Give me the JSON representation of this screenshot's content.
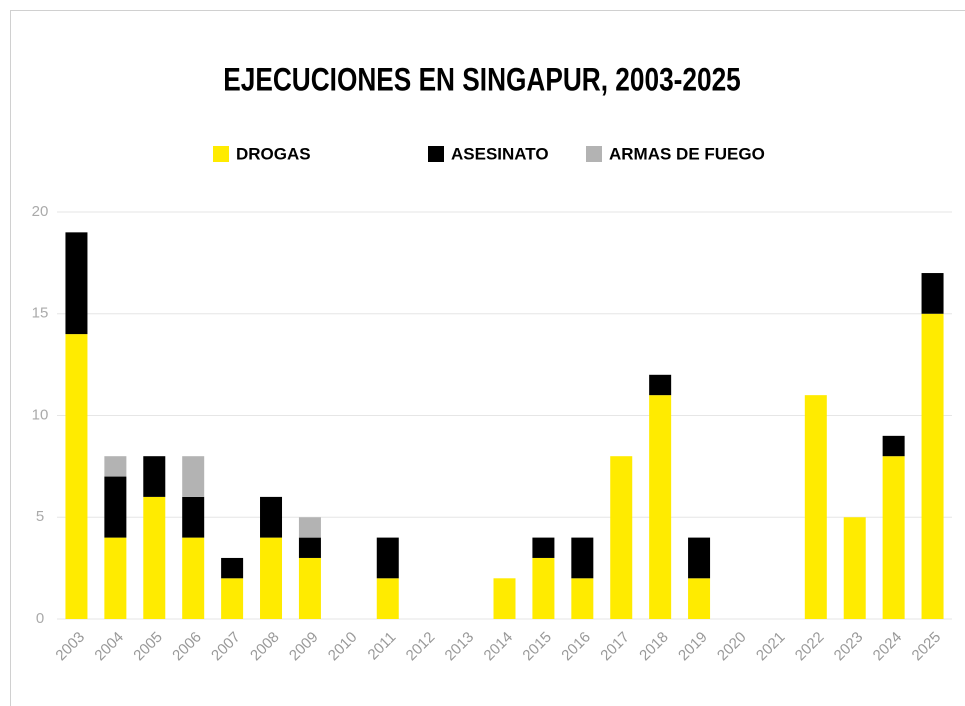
{
  "chart_data": {
    "type": "stacked_bar",
    "title": "EJECUCIONES EN SINGAPUR, 2003-2025",
    "categories": [
      "2003",
      "2004",
      "2005",
      "2006",
      "2007",
      "2008",
      "2009",
      "2010",
      "2011",
      "2012",
      "2013",
      "2014",
      "2015",
      "2016",
      "2017",
      "2018",
      "2019",
      "2020",
      "2021",
      "2022",
      "2023",
      "2024",
      "2025"
    ],
    "series": [
      {
        "name": "DROGAS",
        "color": "#ffeb00",
        "values": [
          14,
          4,
          6,
          4,
          2,
          4,
          3,
          0,
          2,
          0,
          0,
          2,
          3,
          2,
          8,
          11,
          2,
          0,
          0,
          11,
          5,
          8,
          15
        ]
      },
      {
        "name": "ASESINATO",
        "color": "#000000",
        "values": [
          5,
          3,
          2,
          2,
          1,
          2,
          1,
          0,
          2,
          0,
          0,
          0,
          1,
          2,
          0,
          1,
          2,
          0,
          0,
          0,
          0,
          1,
          2
        ]
      },
      {
        "name": "ARMAS DE FUEGO",
        "color": "#b3b3b3",
        "values": [
          0,
          1,
          0,
          2,
          0,
          0,
          1,
          0,
          0,
          0,
          0,
          0,
          0,
          0,
          0,
          0,
          0,
          0,
          0,
          0,
          0,
          0,
          0
        ]
      }
    ],
    "ylim": [
      0,
      20
    ],
    "yticks": [
      0,
      5,
      10,
      15,
      20
    ],
    "grid": true,
    "legend": "top"
  }
}
